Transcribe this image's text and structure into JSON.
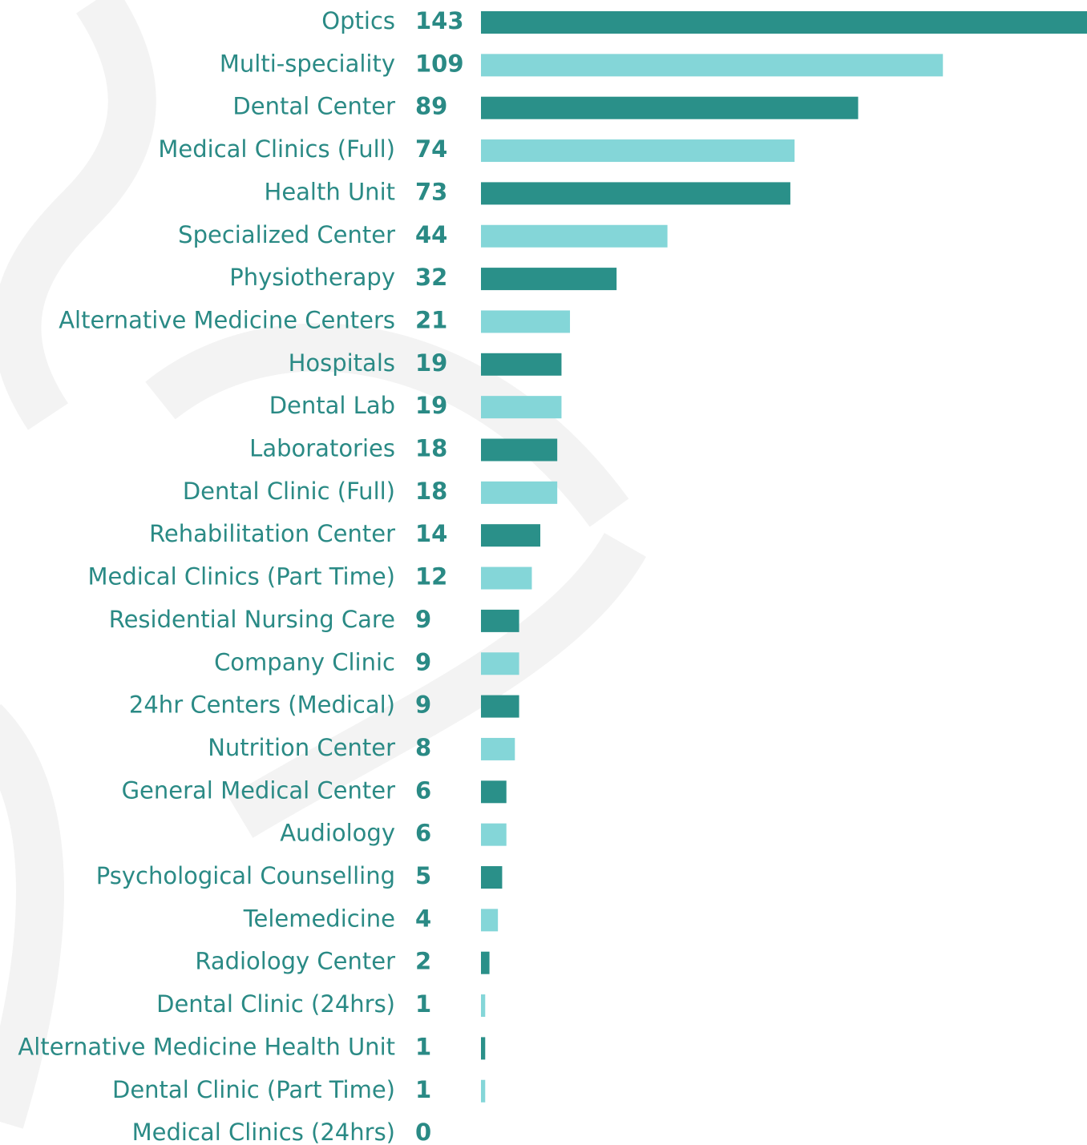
{
  "chart_data": {
    "type": "barh",
    "categories": [
      "Optics",
      "Multi-speciality",
      "Dental Center",
      "Medical Clinics (Full)",
      "Health Unit",
      "Specialized Center",
      "Physiotherapy",
      "Alternative Medicine Centers",
      "Hospitals",
      "Dental Lab",
      "Laboratories",
      "Dental Clinic (Full)",
      "Rehabilitation Center",
      "Medical Clinics (Part Time)",
      "Residential Nursing Care",
      "Company Clinic",
      "24hr Centers (Medical)",
      "Nutrition Center",
      "General Medical Center",
      "Audiology",
      "Psychological Counselling",
      "Telemedicine",
      "Radiology Center",
      "Dental Clinic (24hrs)",
      "Alternative Medicine Health Unit",
      "Dental Clinic (Part Time)",
      "Medical Clinics (24hrs)"
    ],
    "values": [
      143,
      109,
      89,
      74,
      73,
      44,
      32,
      21,
      19,
      19,
      18,
      18,
      14,
      12,
      9,
      9,
      9,
      8,
      6,
      6,
      5,
      4,
      2,
      1,
      1,
      1,
      0
    ],
    "colors": [
      "#2a9089",
      "#84d6d8"
    ],
    "xlim": [
      0,
      143
    ]
  }
}
